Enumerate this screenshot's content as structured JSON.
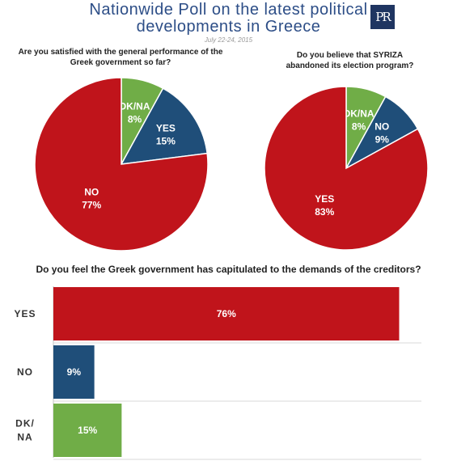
{
  "header": {
    "title_line1": "Nationwide Poll on the latest political",
    "title_line2": "developments in Greece",
    "date": "July 22-24, 2015",
    "logo_text": "PR"
  },
  "colors": {
    "no": "#c0141b",
    "yes_pie": "#1f4e79",
    "dk": "#70ad47",
    "title": "#2d4e87"
  },
  "chart_data": [
    {
      "type": "pie",
      "title_line1": "Are you satisfied with the general performance of the",
      "title_line2": "Greek government so far?",
      "slices": [
        {
          "label": "DK/NA",
          "value": 8,
          "color": "#70ad47"
        },
        {
          "label": "YES",
          "value": 15,
          "color": "#1f4e79"
        },
        {
          "label": "NO",
          "value": 77,
          "color": "#c0141b"
        }
      ]
    },
    {
      "type": "pie",
      "title_line1": "Do you believe that SYRIZA",
      "title_line2": "abandoned its election program?",
      "slices": [
        {
          "label": "DK/NA",
          "value": 8,
          "color": "#70ad47"
        },
        {
          "label": "NO",
          "value": 9,
          "color": "#1f4e79"
        },
        {
          "label": "YES",
          "value": 83,
          "color": "#c0141b"
        }
      ]
    },
    {
      "type": "bar",
      "title": "Do you feel the Greek government has capitulated to the demands of the creditors?",
      "categories": [
        "YES",
        "NO",
        "DK/NA"
      ],
      "category_lines": [
        [
          "YES"
        ],
        [
          "NO"
        ],
        [
          "DK/",
          "NA"
        ]
      ],
      "values": [
        76,
        9,
        15
      ],
      "colors": [
        "#c0141b",
        "#1f4e79",
        "#70ad47"
      ]
    }
  ]
}
